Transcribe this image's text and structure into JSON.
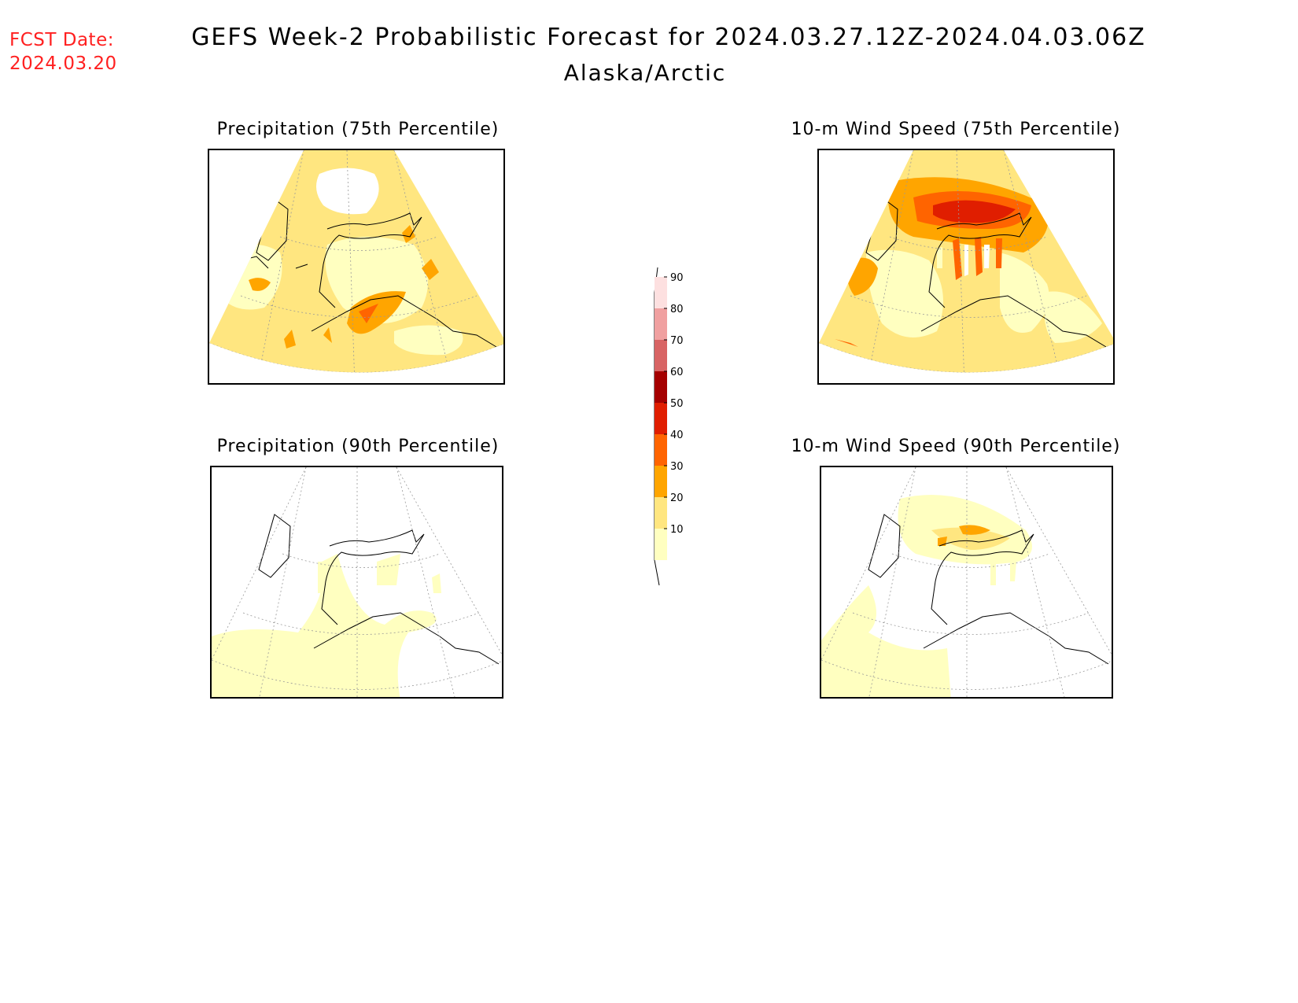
{
  "header": {
    "fcst_label": "FCST Date:",
    "fcst_date": "2024.03.20",
    "title": "GEFS Week-2 Probabilistic Forecast for 2024.03.27.12Z-2024.04.03.06Z",
    "subtitle": "Alaska/Arctic"
  },
  "panels": [
    {
      "id": "precip75",
      "title": "Precipitation (75th Percentile)"
    },
    {
      "id": "wind75",
      "title": "10-m Wind Speed (75th Percentile)"
    },
    {
      "id": "precip90",
      "title": "Precipitation (90th Percentile)"
    },
    {
      "id": "wind90",
      "title": "10-m Wind Speed (90th Percentile)"
    }
  ],
  "colorbar": {
    "levels": [
      "10",
      "20",
      "30",
      "40",
      "50",
      "60",
      "70",
      "80",
      "90"
    ],
    "colors": [
      "#ffffc0",
      "#ffe680",
      "#ffa500",
      "#ff6400",
      "#e01e00",
      "#a50000",
      "#d86464",
      "#f0a0a0",
      "#fde0e0"
    ]
  }
}
